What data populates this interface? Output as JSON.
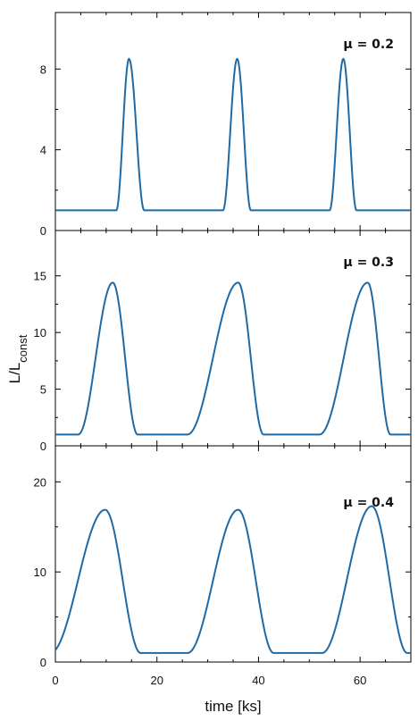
{
  "colors": {
    "line": "#1f6aa5",
    "frame": "#000000"
  },
  "chart_data": {
    "type": "line",
    "xlabel": "time [ks]",
    "ylabel_main": "L/L",
    "ylabel_sub": "const",
    "xlim": [
      0,
      70
    ],
    "xticks": [
      0,
      20,
      40,
      60
    ],
    "panels": [
      {
        "annotation": "μ = 0.2",
        "ylim": [
          0,
          10.8
        ],
        "yticks": [
          0,
          4,
          8
        ],
        "series": {
          "baseline": 1.0,
          "peaks": [
            {
              "start": 12.0,
              "peak_x": 14.5,
              "end": 17.5,
              "peak_y": 8.5
            },
            {
              "start": 33.0,
              "peak_x": 35.8,
              "end": 38.5,
              "peak_y": 8.5
            },
            {
              "start": 54.0,
              "peak_x": 56.7,
              "end": 59.3,
              "peak_y": 8.5
            }
          ]
        }
      },
      {
        "annotation": "μ = 0.3",
        "ylim": [
          0,
          19
        ],
        "yticks": [
          0,
          5,
          10,
          15
        ],
        "series": {
          "baseline": 1.0,
          "peaks": [
            {
              "start": 4.5,
              "peak_x": 11.3,
              "end": 16.2,
              "peak_y": 14.4
            },
            {
              "start": 26.0,
              "peak_x": 36.0,
              "end": 41.0,
              "peak_y": 14.4
            },
            {
              "start": 52.0,
              "peak_x": 61.5,
              "end": 66.0,
              "peak_y": 14.4
            }
          ]
        }
      },
      {
        "annotation": "μ = 0.4",
        "ylim": [
          0,
          24
        ],
        "yticks": [
          0,
          10,
          20
        ],
        "series": {
          "baseline": 1.0,
          "peaks": [
            {
              "start": -1.0,
              "peak_x": 9.8,
              "end": 16.8,
              "peak_y": 16.9
            },
            {
              "start": 26.0,
              "peak_x": 36.0,
              "end": 43.0,
              "peak_y": 16.9
            },
            {
              "start": 52.5,
              "peak_x": 62.3,
              "end": 69.3,
              "peak_y": 17.3
            }
          ]
        }
      }
    ]
  }
}
